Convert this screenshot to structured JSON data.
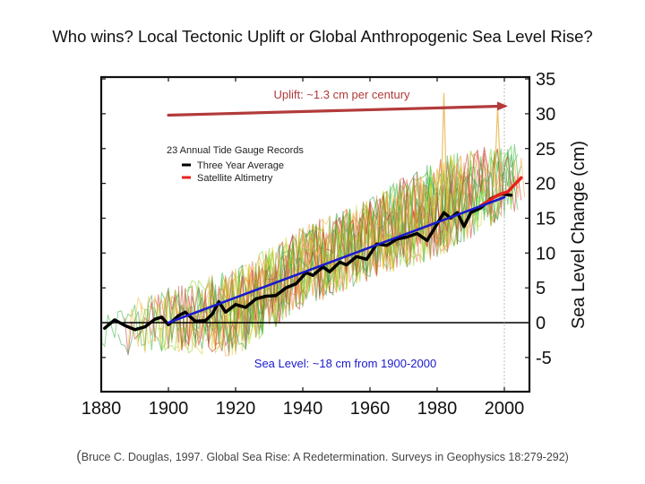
{
  "slide": {
    "title": "Who wins? Local Tectonic Uplift or Global Anthropogenic Sea Level Rise?",
    "citation_open": "(",
    "citation": "Bruce C. Douglas, 1997. Global Sea Rise: A Redetermination. Surveys in Geophysics 18:279-292)"
  },
  "chart_data": {
    "type": "line",
    "title": "",
    "xlabel": "",
    "ylabel": "Sea Level Change (cm)",
    "xlim": [
      1880,
      2008
    ],
    "ylim": [
      -10,
      35
    ],
    "x_ticks": [
      1880,
      1900,
      1920,
      1940,
      1960,
      1980,
      2000
    ],
    "y_ticks": [
      -5,
      0,
      5,
      10,
      15,
      20,
      25,
      30,
      35
    ],
    "y_axis_side": "right",
    "grid": false,
    "zero_line": true,
    "reference_line_x": 2000,
    "legend": {
      "title": "23 Annual Tide Gauge Records",
      "placement": "upper-left",
      "entries": [
        {
          "label": "Three Year Average",
          "color": "#000000"
        },
        {
          "label": "Satellite Altimetry",
          "color": "#e8231c"
        }
      ]
    },
    "series": [
      {
        "name": "Three Year Average",
        "color": "#000000",
        "x": [
          1881,
          1884,
          1887,
          1890,
          1893,
          1896,
          1898,
          1900,
          1903,
          1905,
          1908,
          1911,
          1913,
          1915,
          1917,
          1920,
          1923,
          1926,
          1929,
          1932,
          1935,
          1938,
          1941,
          1943,
          1946,
          1948,
          1951,
          1953,
          1956,
          1959,
          1962,
          1965,
          1968,
          1971,
          1974,
          1977,
          1980,
          1982,
          1984,
          1986,
          1988,
          1990,
          1993,
          1996,
          1999,
          2002
        ],
        "y": [
          -0.8,
          0.4,
          -0.4,
          -1.0,
          -0.6,
          0.5,
          0.8,
          -0.3,
          1.0,
          1.5,
          0.2,
          0.3,
          1.2,
          3.0,
          1.5,
          2.6,
          2.2,
          3.4,
          3.8,
          3.9,
          5.0,
          5.6,
          7.2,
          6.8,
          8.0,
          7.3,
          8.7,
          8.3,
          9.5,
          9.1,
          11.3,
          11.1,
          12.0,
          12.3,
          12.8,
          11.8,
          14.2,
          15.8,
          15.0,
          15.8,
          13.8,
          15.8,
          16.5,
          17.8,
          18.5,
          18.3
        ]
      },
      {
        "name": "Satellite Altimetry",
        "color": "#e8231c",
        "x": [
          1993,
          1995,
          1997,
          1999,
          2001,
          2003,
          2005
        ],
        "y": [
          16.8,
          17.4,
          18.0,
          18.5,
          18.8,
          19.8,
          20.8
        ]
      },
      {
        "name": "Linear trend",
        "color": "#1a1acc",
        "x": [
          1900,
          2000
        ],
        "y": [
          0,
          18
        ]
      },
      {
        "name": "Uplift",
        "color": "#b33b3b",
        "x": [
          1900,
          2000
        ],
        "y": [
          29.8,
          31.1
        ]
      }
    ],
    "tide_gauge_records": {
      "count": 23,
      "colors": [
        "#2fb82f",
        "#7ed321",
        "#f2a33a",
        "#e86a4a",
        "#d4d42a",
        "#c0392b",
        "#3aa04a",
        "#f0c040"
      ],
      "envelope_low_cm": {
        "1880": -6,
        "1900": -5,
        "1920": -6,
        "1940": 1,
        "1960": 5,
        "1980": 8,
        "2000": 14
      },
      "envelope_high_cm": {
        "1880": 4,
        "1900": 6,
        "1920": 9,
        "1940": 15,
        "1960": 19,
        "1980": 25,
        "2000": 27
      },
      "peaks": [
        {
          "x": 1982,
          "y": 33
        },
        {
          "x": 1998,
          "y": 31
        }
      ]
    },
    "annotations": [
      {
        "text": "Uplift: ~1.3 cm per century",
        "color": "#b03a3a",
        "x": 1950,
        "y": 32.3
      },
      {
        "text": "Sea Level: ~18 cm from 1900-2000",
        "color": "#1a1acc",
        "x": 1950,
        "y": -5.8
      }
    ]
  }
}
